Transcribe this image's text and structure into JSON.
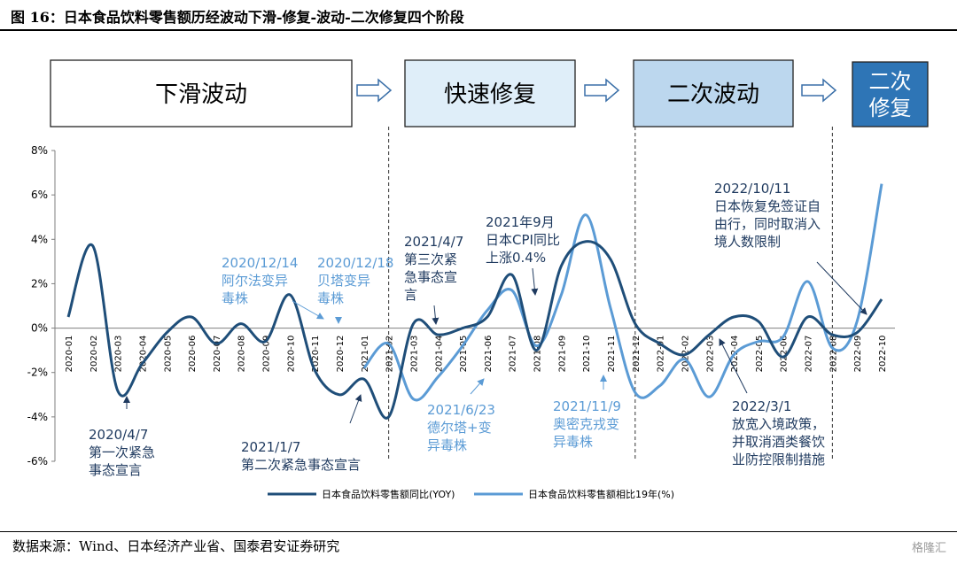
{
  "figure": {
    "title": "图 16：日本食品饮料零售额历经波动下滑-修复-波动-二次修复四个阶段",
    "source": "数据来源：Wind、日本经济产业省、国泰君安证券研究",
    "watermark": "格隆汇"
  },
  "phases": [
    {
      "label": [
        "下滑波动"
      ],
      "fill": "#ffffff"
    },
    {
      "label": [
        "快速修复"
      ],
      "fill": "#dfeef9"
    },
    {
      "label": [
        "二次波动"
      ],
      "fill": "#bcd7ee"
    },
    {
      "label": [
        "二次",
        "修复"
      ],
      "fill": "#2e75b6",
      "text_color": "#ffffff"
    }
  ],
  "colors": {
    "series_yoy": "#1f4e79",
    "series_19": "#5b9bd5",
    "annotation_dark": "#1f3a5f",
    "annotation_light": "#5b9bd5"
  },
  "chart_data": {
    "type": "line",
    "categories": [
      "2020-01",
      "2020-02",
      "2020-03",
      "2020-04",
      "2020-05",
      "2020-06",
      "2020-07",
      "2020-08",
      "2020-09",
      "2020-10",
      "2020-11",
      "2020-12",
      "2021-01",
      "2021-02",
      "2021-03",
      "2021-04",
      "2021-05",
      "2021-06",
      "2021-07",
      "2021-08",
      "2021-09",
      "2021-10",
      "2021-11",
      "2021-12",
      "2022-01",
      "2022-02",
      "2022-03",
      "2022-04",
      "2022-05",
      "2022-06",
      "2022-07",
      "2022-08",
      "2022-09",
      "2022-10"
    ],
    "ylim": [
      -6,
      8
    ],
    "yticks": [
      -6,
      -4,
      -2,
      0,
      2,
      4,
      6,
      8
    ],
    "ytick_labels": [
      "-6%",
      "-4%",
      "-2%",
      "0%",
      "2%",
      "4%",
      "6%",
      "8%"
    ],
    "legend_position": "bottom",
    "phase_dividers": [
      "2021-02",
      "2021-12",
      "2022-08"
    ],
    "series": [
      {
        "name": "日本食品饮料零售额同比(YOY)",
        "values": [
          0.5,
          3.7,
          -2.8,
          -1.6,
          -0.2,
          0.5,
          -0.7,
          0.2,
          -0.6,
          1.5,
          -1.9,
          -3.0,
          -2.3,
          -4.0,
          0.2,
          -0.3,
          0.0,
          0.5,
          2.4,
          -1.0,
          2.8,
          3.9,
          3.1,
          0.2,
          -0.7,
          -1.2,
          -0.3,
          0.5,
          0.3,
          -1.3,
          0.5,
          -0.3,
          -0.2,
          1.3
        ]
      },
      {
        "name": "日本食品饮料零售额相比19年(%)",
        "values": [
          null,
          null,
          null,
          null,
          null,
          null,
          null,
          null,
          null,
          null,
          null,
          null,
          -1.8,
          -0.7,
          -3.2,
          -2.2,
          -0.8,
          0.8,
          1.7,
          -0.8,
          1.5,
          5.1,
          0.9,
          -2.9,
          -2.6,
          -1.4,
          -3.1,
          -1.2,
          -0.6,
          -0.4,
          2.1,
          -0.9,
          0.3,
          6.5
        ]
      }
    ],
    "annotations": [
      {
        "text": [
          "2020/4/7",
          "第一次紧急",
          "事态宣言"
        ],
        "month": "2020-04"
      },
      {
        "text": [
          "2020/12/14",
          "阿尔法变异",
          "毒株"
        ],
        "month": "2020-12"
      },
      {
        "text": [
          "2020/12/18",
          "贝塔变异",
          "毒株"
        ],
        "month": "2020-12"
      },
      {
        "text": [
          "2021/1/7",
          "第二次紧急事态宣言"
        ],
        "month": "2021-01"
      },
      {
        "text": [
          "2021/4/7",
          "第三次紧",
          "急事态宣",
          "言"
        ],
        "month": "2021-04"
      },
      {
        "text": [
          "2021/6/23",
          "德尔塔+变",
          "异毒株"
        ],
        "month": "2021-06"
      },
      {
        "text": [
          "2021年9月",
          "日本CPI同比",
          "上涨0.4%"
        ],
        "month": "2021-09"
      },
      {
        "text": [
          "2021/11/9",
          "奥密克戎变",
          "异毒株"
        ],
        "month": "2021-11"
      },
      {
        "text": [
          "2022/3/1",
          "放宽入境政策，",
          "并取消酒类餐饮",
          "业防控限制措施"
        ],
        "month": "2022-03"
      },
      {
        "text": [
          "2022/10/11",
          "日本恢复免签证自",
          "由行，同时取消入",
          "境人数限制"
        ],
        "month": "2022-10"
      }
    ]
  }
}
